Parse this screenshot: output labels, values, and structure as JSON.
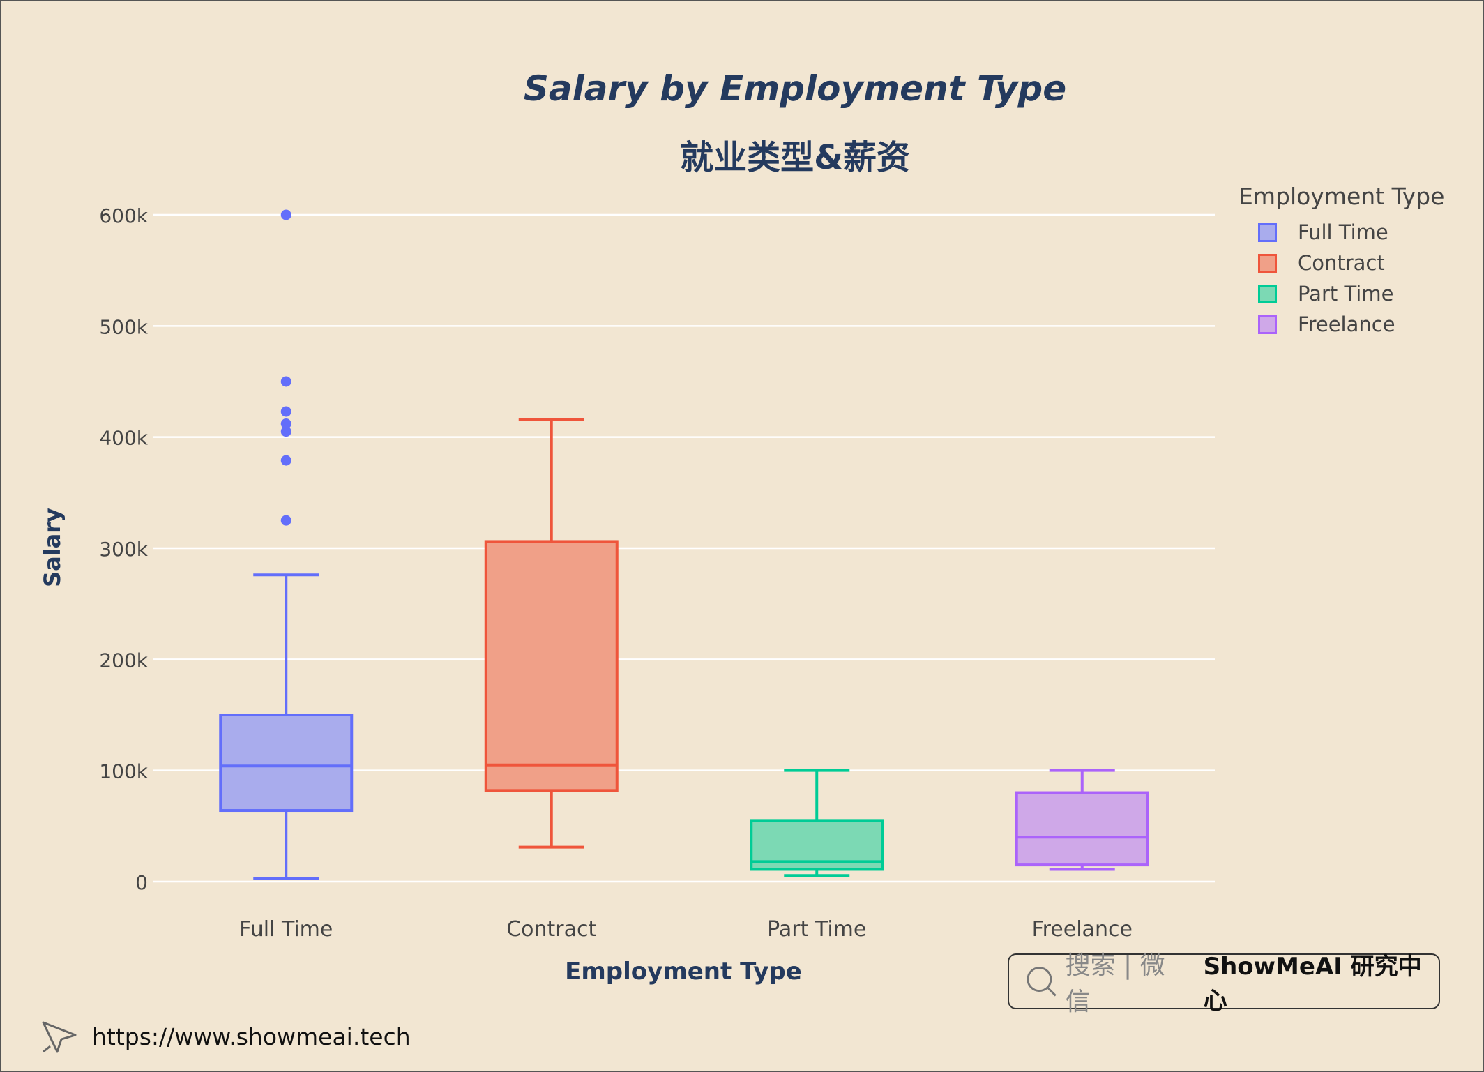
{
  "chart_data": {
    "type": "box",
    "title": "Salary by Employment Type",
    "subtitle": "就业类型&薪资",
    "xlabel": "Employment Type",
    "ylabel": "Salary",
    "ylim": [
      0,
      620000
    ],
    "yticks": [
      0,
      100000,
      200000,
      300000,
      400000,
      500000,
      600000
    ],
    "ytick_labels": [
      "0",
      "100k",
      "200k",
      "300k",
      "400k",
      "500k",
      "600k"
    ],
    "grid": true,
    "legend_title": "Employment Type",
    "legend_position": "top-right",
    "categories": [
      "Full Time",
      "Contract",
      "Part Time",
      "Freelance"
    ],
    "series": [
      {
        "name": "Full Time",
        "color": "#636efa",
        "fill": "#a9aced",
        "min": 3000,
        "q1": 64000,
        "median": 104000,
        "q3": 150000,
        "max": 276000,
        "outliers": [
          325000,
          379000,
          405000,
          412000,
          423000,
          450000,
          600000
        ]
      },
      {
        "name": "Contract",
        "color": "#ef553b",
        "fill": "#f0a088",
        "min": 31000,
        "q1": 82000,
        "median": 105000,
        "q3": 306000,
        "max": 416000,
        "outliers": []
      },
      {
        "name": "Part Time",
        "color": "#00cc96",
        "fill": "#7cd9b4",
        "min": 5500,
        "q1": 11000,
        "median": 18000,
        "q3": 55000,
        "max": 100000,
        "outliers": []
      },
      {
        "name": "Freelance",
        "color": "#ab63fa",
        "fill": "#cfa8e8",
        "min": 11000,
        "q1": 15000,
        "median": 40000,
        "q3": 80000,
        "max": 100000,
        "outliers": []
      }
    ]
  },
  "watermark": {
    "search_text": "搜索 | 微信",
    "brand_text": "ShowMeAI 研究中心",
    "icon": "search-icon"
  },
  "footer": {
    "url": "https://www.showmeai.tech",
    "icon": "cursor-icon"
  }
}
